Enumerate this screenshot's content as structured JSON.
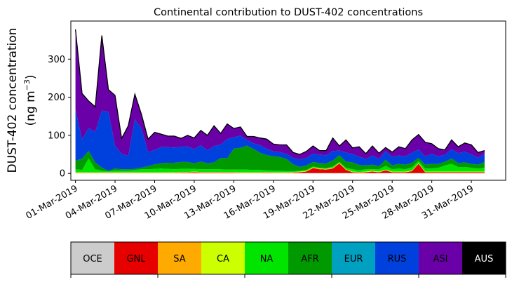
{
  "chart_data": {
    "type": "area",
    "stacked": true,
    "title": "Continental contribution to DUST-402 concentrations",
    "ylabel_line1": "DUST-402 concentration",
    "ylabel_line2_prefix": "(ng m",
    "ylabel_line2_sup": "−3",
    "ylabel_line2_suffix": ")",
    "xlabel": "",
    "x_range_days": [
      -0.35,
      32.6
    ],
    "ylim": [
      -18,
      400
    ],
    "yticks": [
      0,
      100,
      200,
      300
    ],
    "xticks": [
      {
        "day": 0,
        "label": "01-Mar-2019"
      },
      {
        "day": 3,
        "label": "04-Mar-2019"
      },
      {
        "day": 6,
        "label": "07-Mar-2019"
      },
      {
        "day": 9,
        "label": "10-Mar-2019"
      },
      {
        "day": 12,
        "label": "13-Mar-2019"
      },
      {
        "day": 15,
        "label": "16-Mar-2019"
      },
      {
        "day": 18,
        "label": "19-Mar-2019"
      },
      {
        "day": 21,
        "label": "22-Mar-2019"
      },
      {
        "day": 24,
        "label": "25-Mar-2019"
      },
      {
        "day": 27,
        "label": "28-Mar-2019"
      },
      {
        "day": 30,
        "label": "31-Mar-2019"
      }
    ],
    "x": [
      0,
      0.5,
      1,
      1.5,
      2,
      2.5,
      3,
      3.5,
      4,
      4.5,
      5,
      5.5,
      6,
      6.5,
      7,
      7.5,
      8,
      8.5,
      9,
      9.5,
      10,
      10.5,
      11,
      11.5,
      12,
      12.5,
      13,
      13.5,
      14,
      14.5,
      15,
      15.5,
      16,
      16.5,
      17,
      17.5,
      18,
      18.5,
      19,
      19.5,
      20,
      20.5,
      21,
      21.5,
      22,
      22.5,
      23,
      23.5,
      24,
      24.5,
      25,
      25.5,
      26,
      26.5,
      27,
      27.5,
      28,
      28.5,
      29,
      29.5,
      30,
      30.5,
      31
    ],
    "total": [
      378,
      210,
      190,
      175,
      362,
      220,
      205,
      92,
      125,
      208,
      155,
      90,
      108,
      103,
      98,
      98,
      92,
      100,
      93,
      113,
      100,
      125,
      105,
      130,
      118,
      122,
      97,
      97,
      93,
      90,
      77,
      75,
      75,
      55,
      50,
      58,
      72,
      60,
      60,
      93,
      72,
      88,
      67,
      70,
      52,
      72,
      53,
      68,
      56,
      70,
      65,
      88,
      102,
      82,
      78,
      65,
      62,
      88,
      70,
      80,
      75,
      55,
      60
    ],
    "legend_title": "",
    "legend_position": "below-plot",
    "series": [
      {
        "name": "OCE",
        "color": "#cccccc",
        "values": [
          1,
          1,
          1,
          1,
          1,
          1,
          1,
          1,
          1,
          1,
          1,
          1,
          1,
          1,
          1,
          1,
          1,
          1,
          1,
          1,
          1,
          1,
          1,
          1,
          1,
          1,
          1,
          1,
          1,
          1,
          1,
          1,
          1,
          1,
          1,
          1,
          1,
          1,
          1,
          1,
          1,
          1,
          1,
          1,
          1,
          1,
          1,
          1,
          1,
          1,
          1,
          1,
          1,
          1,
          1,
          1,
          1,
          1,
          1,
          1,
          1,
          1,
          1
        ]
      },
      {
        "name": "GNL",
        "color": "#e60000",
        "values": [
          0,
          0,
          0,
          0,
          0,
          0,
          0,
          0,
          0,
          0,
          0,
          0,
          0,
          0,
          0,
          0,
          1,
          1,
          2,
          1,
          1,
          1,
          1,
          1,
          1,
          0,
          0,
          0,
          0,
          1,
          0,
          0,
          0,
          1,
          2,
          4,
          13,
          10,
          9,
          12,
          25,
          8,
          2,
          1,
          2,
          4,
          2,
          7,
          2,
          2,
          2,
          5,
          24,
          2,
          2,
          2,
          2,
          2,
          2,
          2,
          2,
          2,
          2
        ]
      },
      {
        "name": "SA",
        "color": "#ffaa00",
        "values": [
          1,
          1,
          1,
          1,
          1,
          1,
          1,
          1,
          1,
          1,
          1,
          1,
          1,
          1,
          1,
          1,
          1,
          1,
          1,
          1,
          1,
          1,
          1,
          1,
          1,
          1,
          1,
          1,
          1,
          1,
          1,
          1,
          1,
          1,
          1,
          1,
          1,
          1,
          1,
          1,
          1,
          1,
          1,
          1,
          1,
          1,
          1,
          1,
          1,
          1,
          1,
          1,
          1,
          1,
          1,
          1,
          1,
          1,
          1,
          1,
          1,
          1,
          1
        ]
      },
      {
        "name": "CA",
        "color": "#ccff00",
        "values": [
          1,
          1,
          1,
          1,
          1,
          1,
          1,
          1,
          1,
          1,
          1,
          1,
          1,
          1,
          1,
          1,
          1,
          1,
          1,
          1,
          1,
          1,
          1,
          1,
          1,
          1,
          1,
          1,
          1,
          1,
          1,
          1,
          1,
          1,
          1,
          1,
          1,
          1,
          1,
          1,
          1,
          1,
          1,
          1,
          1,
          1,
          1,
          1,
          1,
          1,
          1,
          1,
          1,
          1,
          1,
          1,
          1,
          1,
          1,
          1,
          1,
          1,
          1
        ]
      },
      {
        "name": "NA",
        "color": "#00e400",
        "values": [
          8,
          6,
          36,
          8,
          4,
          2,
          5,
          4,
          4,
          6,
          8,
          8,
          9,
          10,
          9,
          8,
          8,
          8,
          7,
          7,
          7,
          7,
          7,
          6,
          6,
          7,
          7,
          6,
          6,
          4,
          4,
          4,
          3,
          2,
          2,
          2,
          2,
          2,
          2,
          3,
          2,
          4,
          6,
          4,
          6,
          4,
          6,
          10,
          6,
          8,
          6,
          8,
          6,
          8,
          8,
          10,
          16,
          20,
          12,
          12,
          10,
          8,
          10
        ]
      },
      {
        "name": "AFR",
        "color": "#009900",
        "values": [
          22,
          30,
          20,
          18,
          8,
          2,
          5,
          4,
          4,
          3,
          4,
          8,
          12,
          14,
          16,
          17,
          18,
          18,
          15,
          20,
          16,
          18,
          30,
          30,
          55,
          57,
          63,
          55,
          45,
          40,
          38,
          36,
          32,
          18,
          10,
          12,
          12,
          12,
          12,
          16,
          18,
          16,
          18,
          14,
          10,
          12,
          8,
          16,
          10,
          12,
          12,
          12,
          8,
          10,
          12,
          10,
          10,
          14,
          10,
          12,
          10,
          10,
          15
        ]
      },
      {
        "name": "EUR",
        "color": "#00a0c0",
        "values": [
          0,
          0,
          0,
          0,
          0,
          0,
          0,
          0,
          0,
          0,
          0,
          0,
          0,
          0,
          0,
          0,
          0,
          0,
          0,
          0,
          0,
          0,
          0,
          0,
          0,
          0,
          0,
          0,
          0,
          0,
          0,
          0,
          0,
          0,
          0,
          0,
          0,
          0,
          0,
          0,
          0,
          0,
          0,
          0,
          0,
          0,
          0,
          0,
          0,
          0,
          0,
          0,
          0,
          0,
          0,
          0,
          0,
          0,
          0,
          0,
          0,
          0,
          0
        ]
      },
      {
        "name": "RUS",
        "color": "#0040dd",
        "values": [
          135,
          50,
          60,
          80,
          150,
          155,
          60,
          41,
          35,
          130,
          103,
          37,
          38,
          42,
          41,
          40,
          40,
          41,
          37,
          43,
          34,
          43,
          35,
          50,
          30,
          32,
          15,
          15,
          20,
          17,
          13,
          13,
          13,
          17,
          20,
          20,
          22,
          22,
          22,
          25,
          12,
          24,
          22,
          22,
          17,
          24,
          19,
          23,
          22,
          22,
          22,
          26,
          22,
          22,
          26,
          20,
          18,
          25,
          26,
          28,
          25,
          18,
          22
        ]
      },
      {
        "name": "ASI",
        "color": "#6a00a8",
        "values": [
          210,
          121,
          71,
          66,
          198,
          59,
          133,
          41,
          80,
          67,
          38,
          34,
          46,
          34,
          29,
          30,
          23,
          29,
          29,
          39,
          39,
          53,
          29,
          40,
          24,
          23,
          9,
          18,
          18,
          25,
          19,
          19,
          24,
          14,
          13,
          17,
          20,
          11,
          12,
          32,
          12,
          33,
          16,
          26,
          14,
          25,
          15,
          9,
          13,
          23,
          20,
          34,
          38,
          37,
          27,
          20,
          13,
          24,
          17,
          23,
          24,
          14,
          8
        ]
      },
      {
        "name": "AUS",
        "color": "#000000",
        "values": [
          0,
          0,
          0,
          0,
          0,
          0,
          0,
          0,
          0,
          0,
          0,
          0,
          0,
          0,
          0,
          0,
          0,
          0,
          0,
          0,
          0,
          0,
          0,
          0,
          0,
          0,
          0,
          0,
          0,
          0,
          0,
          0,
          0,
          0,
          0,
          0,
          0,
          0,
          0,
          0,
          0,
          0,
          0,
          0,
          0,
          0,
          0,
          0,
          0,
          0,
          0,
          0,
          0,
          0,
          0,
          0,
          0,
          0,
          0,
          0,
          0,
          0,
          0
        ]
      }
    ],
    "legend_label_colors": [
      "#000000",
      "#000000",
      "#000000",
      "#000000",
      "#000000",
      "#000000",
      "#000000",
      "#000000",
      "#000000",
      "#ffffff"
    ]
  }
}
